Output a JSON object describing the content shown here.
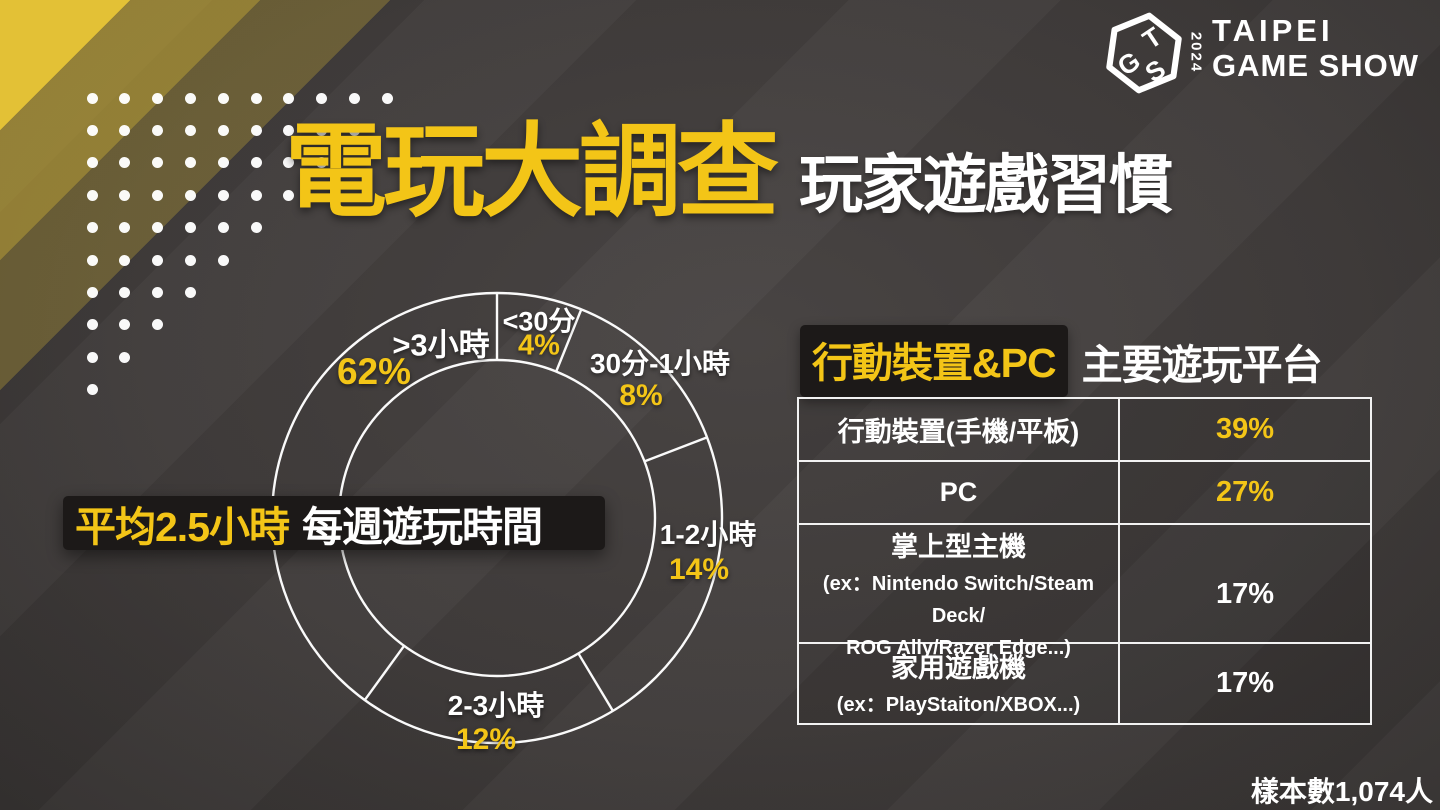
{
  "header": {
    "title_highlight": "電玩大調查",
    "title_rest": "玩家遊戲習慣"
  },
  "logo": {
    "cube_letters": [
      "T",
      "G",
      "S"
    ],
    "year": "2024",
    "wordmark_line1": "TAIPEI",
    "wordmark_line2": "GAME SHOW"
  },
  "footer": {
    "sample_note": "樣本數1,074人"
  },
  "colors": {
    "accent_yellow": "#F3C517",
    "stripe_yellow": "#E3C136",
    "text_white": "#FFFFFF",
    "badge_bg": "#1C1918",
    "ring_stroke": "#FAFAFA"
  },
  "chart_data": [
    {
      "type": "pie",
      "variant": "donut-outline",
      "caption_highlight": "平均2.5小時",
      "caption_rest": "每週遊玩時間",
      "categories": [
        "<30分",
        "30分-1小時",
        "1-2小時",
        "2-3小時",
        ">3小時"
      ],
      "values": [
        4,
        8,
        14,
        12,
        62
      ],
      "unit": "%",
      "value_labels": [
        "4%",
        "8%",
        "14%",
        "12%",
        "62%"
      ],
      "label_color": "#FFFFFF",
      "value_color": "#F3C517",
      "display_boundary_angles_deg": [
        0,
        22,
        69,
        149,
        216
      ],
      "legend_position": "labels-on-ring"
    },
    {
      "type": "table",
      "header_highlight": "行動裝置&PC",
      "header_rest": "主要遊玩平台",
      "rows": [
        {
          "label": "行動裝置(手機/平板)",
          "sub_lines": [],
          "value": "39%",
          "value_color": "#F3C517"
        },
        {
          "label": "PC",
          "sub_lines": [],
          "value": "27%",
          "value_color": "#F3C517"
        },
        {
          "label": "掌上型主機",
          "sub_lines": [
            "(ex：Nintendo Switch/Steam Deck/",
            "ROG Ally/Razer Edge...)"
          ],
          "value": "17%",
          "value_color": "#FFFFFF"
        },
        {
          "label": "家用遊戲機",
          "sub_lines": [
            "(ex：PlayStaiton/XBOX...)"
          ],
          "value": "17%",
          "value_color": "#FFFFFF"
        }
      ]
    }
  ]
}
